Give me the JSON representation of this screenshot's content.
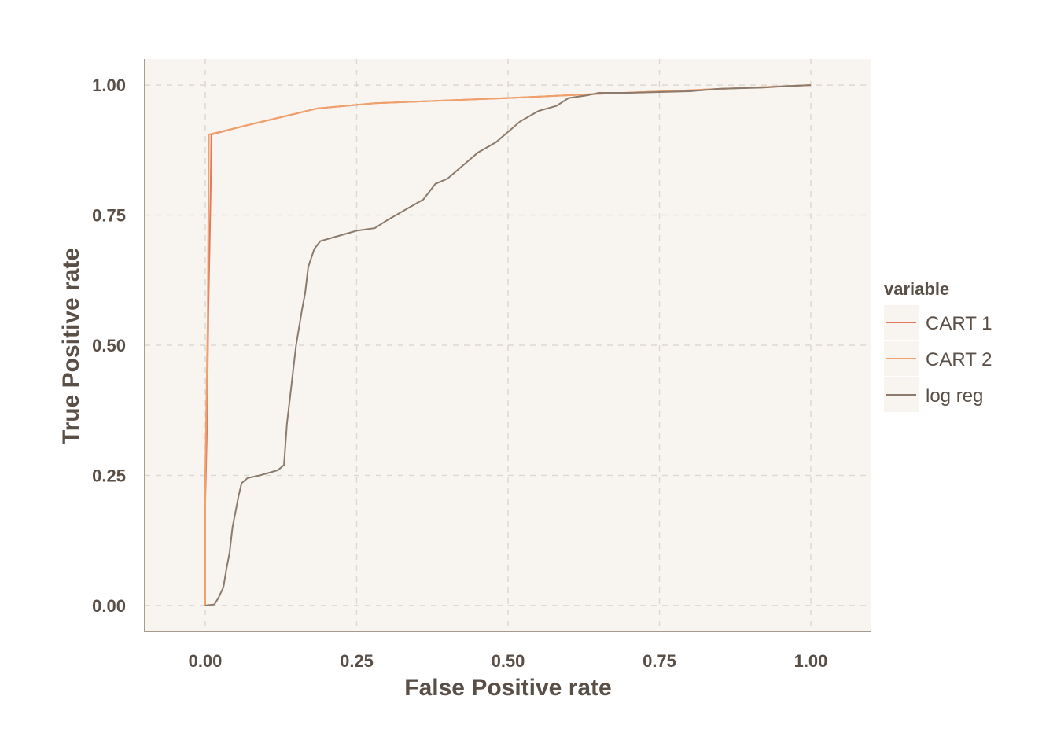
{
  "chart_data": {
    "type": "line",
    "title": "",
    "xlabel": "False Positive rate",
    "ylabel": "True Positive rate",
    "xlim": [
      -0.1,
      1.1
    ],
    "ylim": [
      -0.05,
      1.05
    ],
    "x_ticks": [
      "0.00",
      "0.25",
      "0.50",
      "0.75",
      "1.00"
    ],
    "y_ticks": [
      "0.00",
      "0.25",
      "0.50",
      "0.75",
      "1.00"
    ],
    "grid": true,
    "legend": {
      "title": "variable",
      "position": "right",
      "entries": [
        "CART 1",
        "CART 2",
        "log reg"
      ]
    },
    "series": [
      {
        "name": "CART 1",
        "color": "#e07a5f",
        "points": [
          [
            0,
            0
          ],
          [
            0,
            0.2
          ],
          [
            0.003,
            0.35
          ],
          [
            0.005,
            0.57
          ],
          [
            0.007,
            0.68
          ],
          [
            0.009,
            0.8
          ],
          [
            0.01,
            0.905
          ],
          [
            0.06,
            0.92
          ],
          [
            0.185,
            0.955
          ],
          [
            0.28,
            0.965
          ],
          [
            0.5,
            0.975
          ],
          [
            0.65,
            0.983
          ],
          [
            0.8,
            0.99
          ],
          [
            1,
            1
          ]
        ]
      },
      {
        "name": "CART 2",
        "color": "#f0a06a",
        "points": [
          [
            0,
            0
          ],
          [
            0,
            0.25
          ],
          [
            0.004,
            0.55
          ],
          [
            0.006,
            0.905
          ],
          [
            0.06,
            0.92
          ],
          [
            0.185,
            0.955
          ],
          [
            0.28,
            0.965
          ],
          [
            0.5,
            0.975
          ],
          [
            0.65,
            0.983
          ],
          [
            0.8,
            0.99
          ],
          [
            1,
            1
          ]
        ]
      },
      {
        "name": "log reg",
        "color": "#8c7b6c",
        "points": [
          [
            0,
            0
          ],
          [
            0.015,
            0.002
          ],
          [
            0.022,
            0.015
          ],
          [
            0.03,
            0.035
          ],
          [
            0.035,
            0.07
          ],
          [
            0.04,
            0.1
          ],
          [
            0.045,
            0.15
          ],
          [
            0.05,
            0.18
          ],
          [
            0.055,
            0.21
          ],
          [
            0.06,
            0.235
          ],
          [
            0.07,
            0.245
          ],
          [
            0.09,
            0.25
          ],
          [
            0.12,
            0.26
          ],
          [
            0.13,
            0.27
          ],
          [
            0.135,
            0.35
          ],
          [
            0.14,
            0.4
          ],
          [
            0.145,
            0.45
          ],
          [
            0.15,
            0.5
          ],
          [
            0.16,
            0.57
          ],
          [
            0.165,
            0.6
          ],
          [
            0.17,
            0.65
          ],
          [
            0.18,
            0.685
          ],
          [
            0.19,
            0.7
          ],
          [
            0.22,
            0.71
          ],
          [
            0.25,
            0.72
          ],
          [
            0.28,
            0.725
          ],
          [
            0.3,
            0.74
          ],
          [
            0.33,
            0.76
          ],
          [
            0.36,
            0.78
          ],
          [
            0.38,
            0.81
          ],
          [
            0.4,
            0.82
          ],
          [
            0.42,
            0.84
          ],
          [
            0.45,
            0.87
          ],
          [
            0.48,
            0.89
          ],
          [
            0.5,
            0.91
          ],
          [
            0.52,
            0.93
          ],
          [
            0.55,
            0.95
          ],
          [
            0.58,
            0.96
          ],
          [
            0.6,
            0.975
          ],
          [
            0.63,
            0.98
          ],
          [
            0.65,
            0.985
          ],
          [
            0.7,
            0.985
          ],
          [
            0.8,
            0.988
          ],
          [
            0.85,
            0.993
          ],
          [
            0.92,
            0.995
          ],
          [
            0.96,
            0.998
          ],
          [
            1,
            1
          ]
        ]
      }
    ]
  }
}
